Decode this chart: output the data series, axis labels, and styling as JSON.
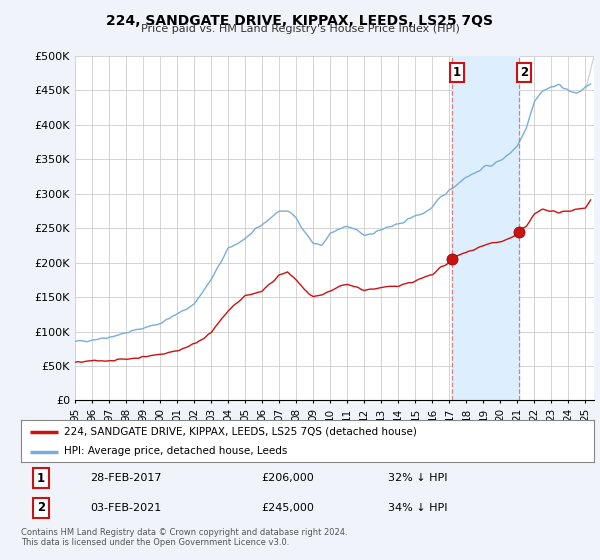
{
  "title": "224, SANDGATE DRIVE, KIPPAX, LEEDS, LS25 7QS",
  "subtitle": "Price paid vs. HM Land Registry's House Price Index (HPI)",
  "ylim": [
    0,
    500000
  ],
  "yticks": [
    0,
    50000,
    100000,
    150000,
    200000,
    250000,
    300000,
    350000,
    400000,
    450000,
    500000
  ],
  "ytick_labels": [
    "£0",
    "£50K",
    "£100K",
    "£150K",
    "£200K",
    "£250K",
    "£300K",
    "£350K",
    "£400K",
    "£450K",
    "£500K"
  ],
  "xlim_start": 1995.0,
  "xlim_end": 2025.5,
  "xtick_years": [
    1995,
    1996,
    1997,
    1998,
    1999,
    2000,
    2001,
    2002,
    2003,
    2004,
    2005,
    2006,
    2007,
    2008,
    2009,
    2010,
    2011,
    2012,
    2013,
    2014,
    2015,
    2016,
    2017,
    2018,
    2019,
    2020,
    2021,
    2022,
    2023,
    2024,
    2025
  ],
  "hpi_color": "#7aaddb",
  "price_color": "#cc1111",
  "annotation_color": "#cc6666",
  "shade_color": "#ddeeff",
  "marker1_x": 2017.17,
  "marker1_y": 206000,
  "marker2_x": 2021.09,
  "marker2_y": 245000,
  "legend_label1": "224, SANDGATE DRIVE, KIPPAX, LEEDS, LS25 7QS (detached house)",
  "legend_label2": "HPI: Average price, detached house, Leeds",
  "note_label1": "28-FEB-2017",
  "note_val1": "£206,000",
  "note_pct1": "32% ↓ HPI",
  "note_label2": "03-FEB-2021",
  "note_val2": "£245,000",
  "note_pct2": "34% ↓ HPI",
  "footer": "Contains HM Land Registry data © Crown copyright and database right 2024.\nThis data is licensed under the Open Government Licence v3.0.",
  "background_color": "#f0f4fa",
  "plot_bg_color": "#ffffff",
  "grid_color": "#cccccc"
}
